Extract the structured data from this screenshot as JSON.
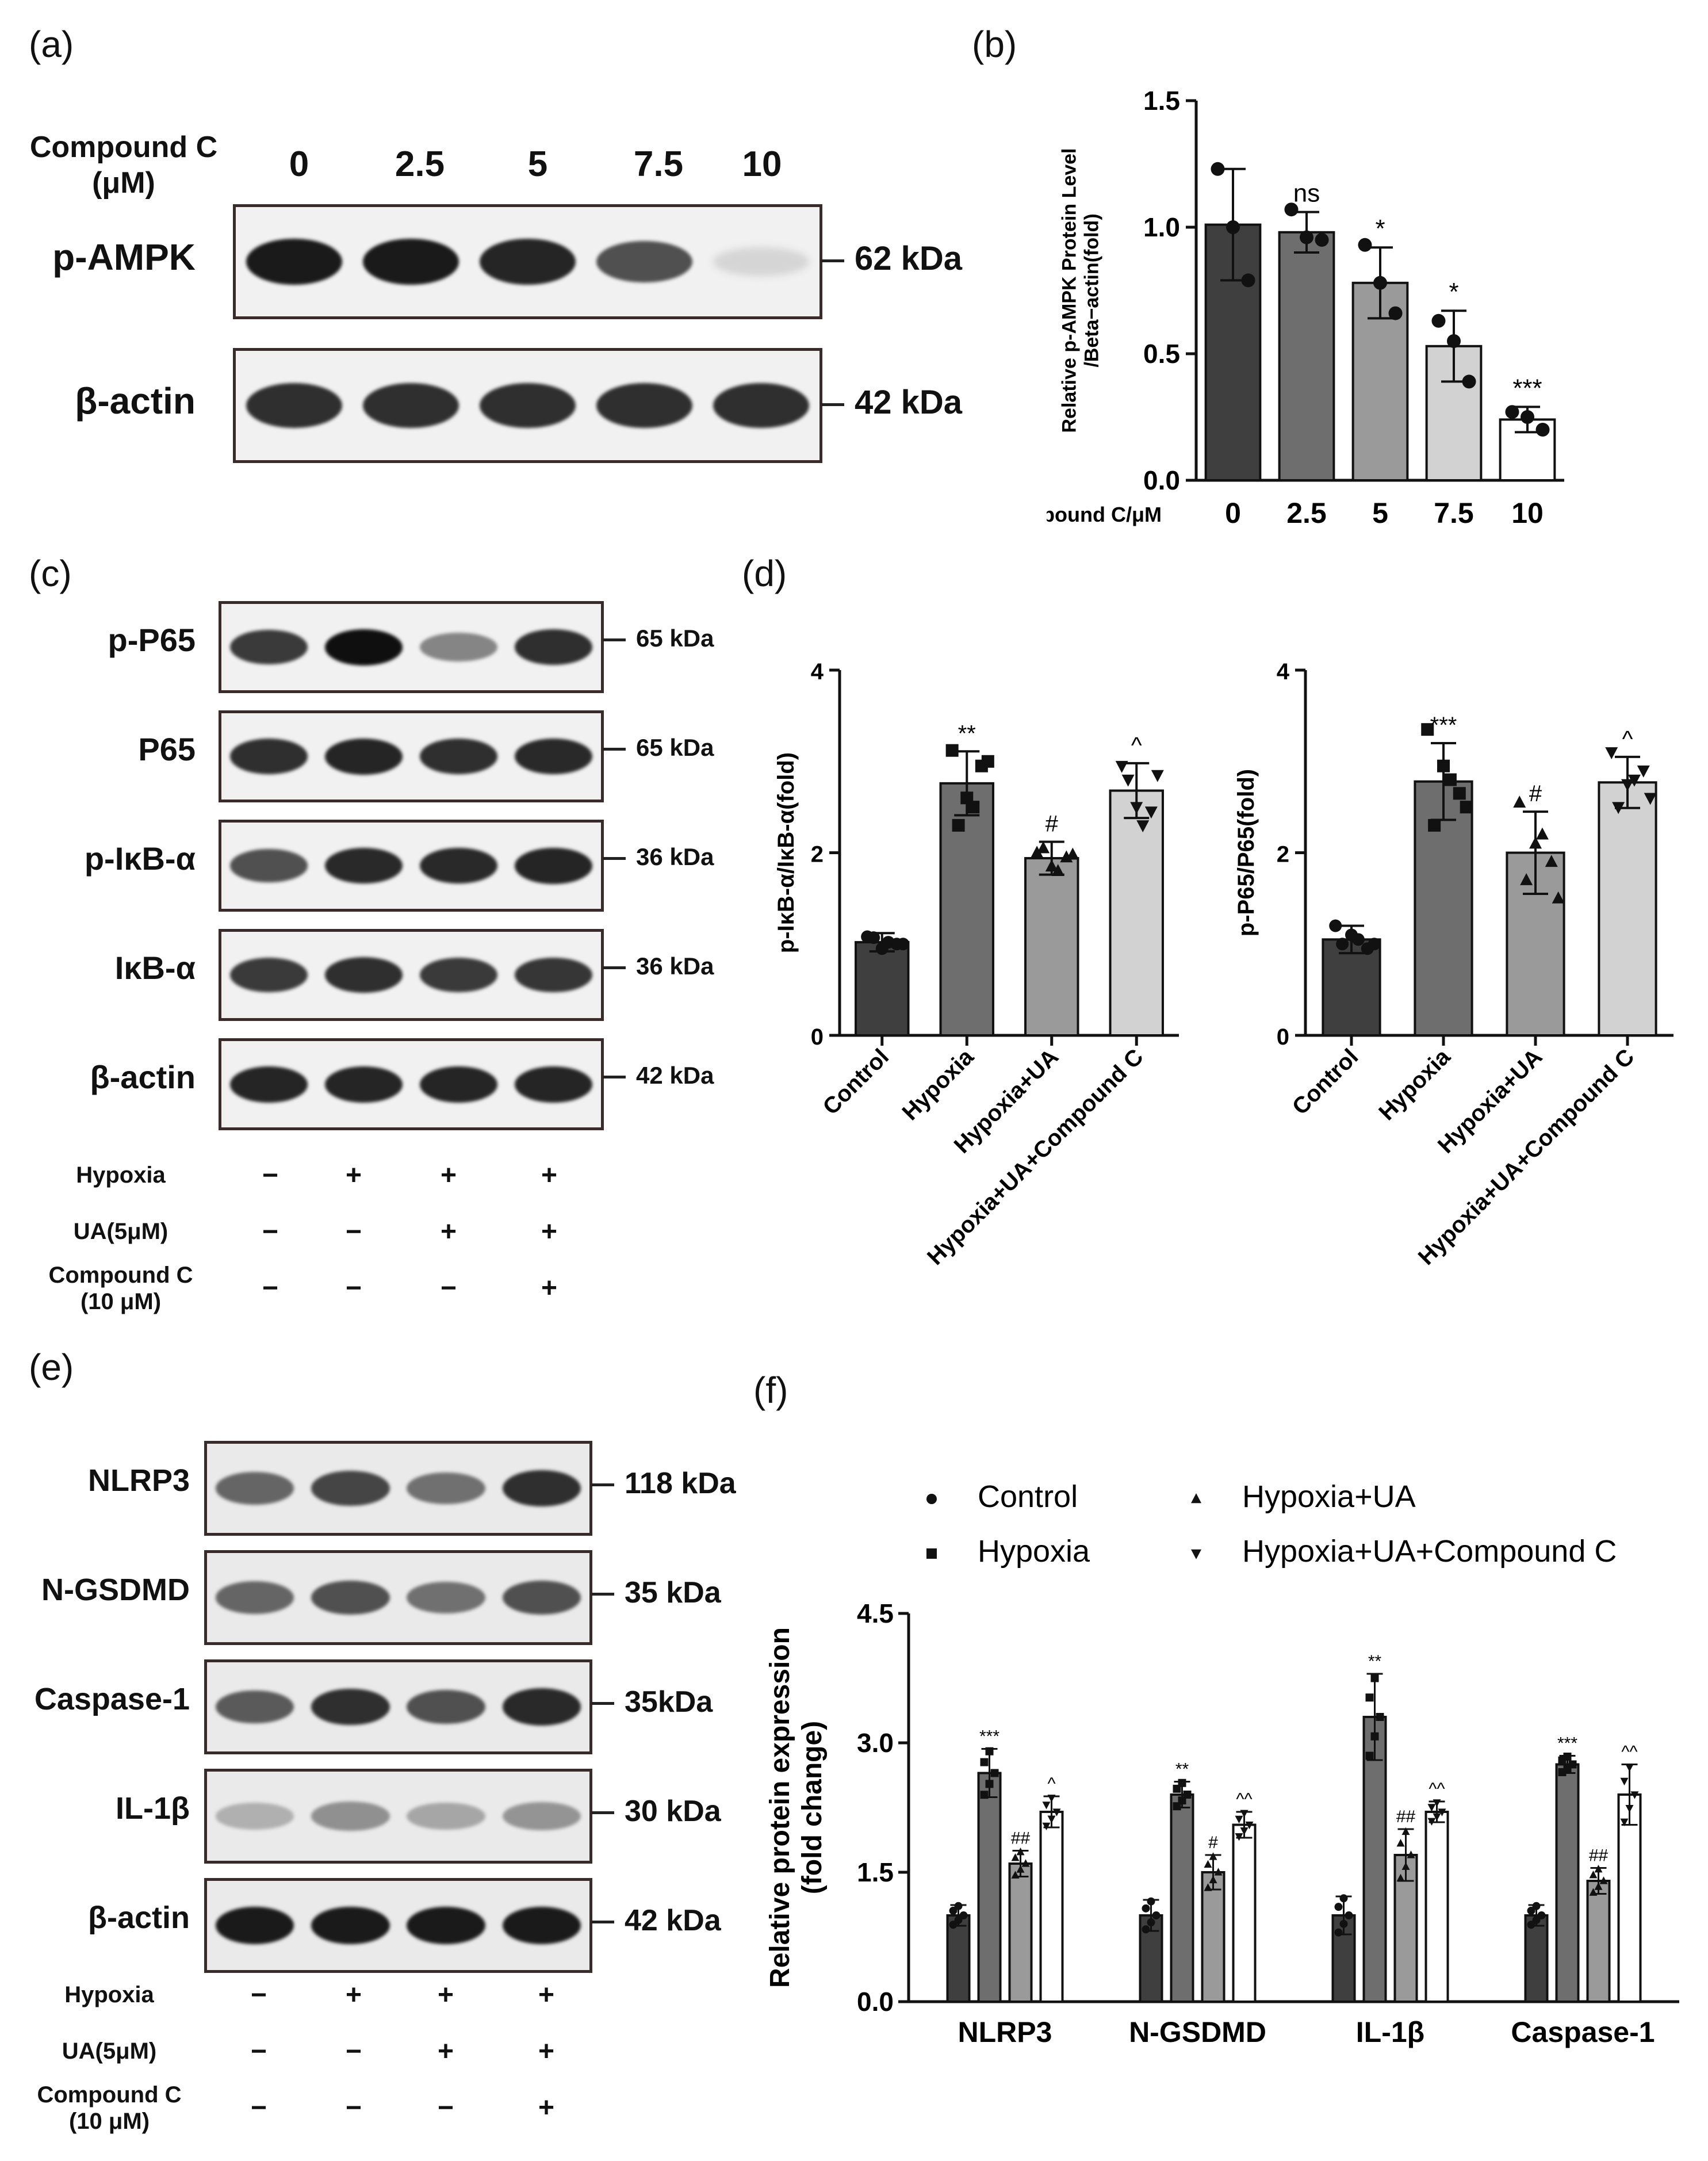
{
  "panel_labels": {
    "a": "(a)",
    "b": "(b)",
    "c": "(c)",
    "d": "(d)",
    "e": "(e)",
    "f": "(f)"
  },
  "panel_a": {
    "row_label_line1": "Compound C",
    "row_label_line2": "(μM)",
    "doses": [
      "0",
      "2.5",
      "5",
      "7.5",
      "10"
    ],
    "blots": [
      {
        "label": "p-AMPK",
        "kda": "62 kDa",
        "intensity": [
          0.95,
          0.95,
          0.9,
          0.7,
          0.08
        ]
      },
      {
        "label": "β-actin",
        "kda": "42 kDa",
        "intensity": [
          0.85,
          0.85,
          0.85,
          0.85,
          0.85
        ]
      }
    ]
  },
  "panel_c": {
    "blots": [
      {
        "label": "p-P65",
        "kda": "65 kDa",
        "intensity": [
          0.8,
          1.0,
          0.45,
          0.85
        ]
      },
      {
        "label": "P65",
        "kda": "65 kDa",
        "intensity": [
          0.85,
          0.9,
          0.85,
          0.88
        ]
      },
      {
        "label": "p-IκB-α",
        "kda": "36 kDa",
        "intensity": [
          0.7,
          0.88,
          0.88,
          0.9
        ]
      },
      {
        "label": "IκB-α",
        "kda": "36 kDa",
        "intensity": [
          0.8,
          0.85,
          0.8,
          0.82
        ]
      },
      {
        "label": "β-actin",
        "kda": "42 kDa",
        "intensity": [
          0.9,
          0.9,
          0.9,
          0.9
        ]
      }
    ],
    "treatments": [
      {
        "label": "Hypoxia",
        "signs": [
          "−",
          "+",
          "+",
          "+"
        ]
      },
      {
        "label": "UA(5μM)",
        "signs": [
          "−",
          "−",
          "+",
          "+"
        ]
      },
      {
        "label": "Compound C\n(10 μM)",
        "signs": [
          "−",
          "−",
          "−",
          "+"
        ]
      }
    ]
  },
  "panel_e": {
    "blots": [
      {
        "label": "NLRP3",
        "kda": "118 kDa",
        "intensity": [
          0.6,
          0.75,
          0.55,
          0.85
        ]
      },
      {
        "label": "N-GSDMD",
        "kda": "35 kDa",
        "intensity": [
          0.6,
          0.7,
          0.55,
          0.7
        ]
      },
      {
        "label": "Caspase-1",
        "kda": "35kDa",
        "intensity": [
          0.65,
          0.85,
          0.7,
          0.88
        ]
      },
      {
        "label": "IL-1β",
        "kda": "30 kDa",
        "intensity": [
          0.25,
          0.4,
          0.3,
          0.38
        ]
      },
      {
        "label": "β-actin",
        "kda": "42 kDa",
        "intensity": [
          0.95,
          0.95,
          0.95,
          0.95
        ]
      }
    ],
    "treatments": [
      {
        "label": "Hypoxia",
        "signs": [
          "−",
          "+",
          "+",
          "+"
        ]
      },
      {
        "label": "UA(5μM)",
        "signs": [
          "−",
          "−",
          "+",
          "+"
        ]
      },
      {
        "label": "Compound C\n(10 μM)",
        "signs": [
          "−",
          "−",
          "−",
          "+"
        ]
      }
    ]
  },
  "colors": {
    "c0": "#3f3f3f",
    "c1": "#6e6e6e",
    "c2": "#9a9a9a",
    "c3": "#d2d2d2",
    "c4": "#ffffff"
  },
  "chart_data": [
    {
      "id": "b",
      "type": "bar",
      "title": "",
      "xlabel": "Compound C/μM",
      "ylabel": "Relative p-AMPK Protein Level\n/Beta−actin(fold)",
      "ylim": [
        0,
        1.5
      ],
      "yticks": [
        "0.0",
        "0.5",
        "1.0",
        "1.5"
      ],
      "categories": [
        "0",
        "2.5",
        "5",
        "7.5",
        "10"
      ],
      "values": [
        1.01,
        0.98,
        0.78,
        0.53,
        0.24
      ],
      "errors": [
        0.22,
        0.08,
        0.14,
        0.14,
        0.05
      ],
      "points": [
        [
          1.23,
          1.0,
          0.79
        ],
        [
          1.07,
          0.96,
          0.95
        ],
        [
          0.93,
          0.78,
          0.66
        ],
        [
          0.63,
          0.55,
          0.39
        ],
        [
          0.27,
          0.25,
          0.2
        ]
      ],
      "significance": [
        "",
        "ns",
        "*",
        "*",
        "***"
      ]
    },
    {
      "id": "d1",
      "type": "bar",
      "title": "",
      "xlabel": "",
      "ylabel": "p-IκB-α/IκB-α(fold)",
      "ylim": [
        0,
        4
      ],
      "yticks": [
        "0",
        "2",
        "4"
      ],
      "categories": [
        "Control",
        "Hypoxia",
        "Hypoxia+UA",
        "Hypoxia+UA+Compound C"
      ],
      "values": [
        1.02,
        2.76,
        1.94,
        2.68
      ],
      "errors": [
        0.1,
        0.35,
        0.18,
        0.3
      ],
      "points": [
        [
          1.08,
          0.95,
          1.0,
          1.07,
          1.02,
          1.0
        ],
        [
          3.12,
          2.6,
          2.95,
          2.3,
          2.5,
          3.0
        ],
        [
          2.0,
          1.85,
          1.95,
          2.05,
          1.8,
          1.98
        ],
        [
          2.95,
          2.5,
          2.45,
          2.8,
          2.3,
          2.85
        ]
      ],
      "markers": [
        "circle",
        "square",
        "triangle",
        "tri-down"
      ],
      "significance": [
        "",
        "**",
        "#",
        "^"
      ]
    },
    {
      "id": "d2",
      "type": "bar",
      "title": "",
      "xlabel": "",
      "ylabel": "p-P65/P65(fold)",
      "ylim": [
        0,
        4
      ],
      "yticks": [
        "0",
        "2",
        "4"
      ],
      "categories": [
        "Control",
        "Hypoxia",
        "Hypoxia+UA",
        "Hypoxia+UA+Compound C"
      ],
      "values": [
        1.05,
        2.78,
        2.0,
        2.77
      ],
      "errors": [
        0.15,
        0.42,
        0.45,
        0.28
      ],
      "points": [
        [
          1.2,
          1.1,
          0.95,
          1.0,
          1.05,
          1.0
        ],
        [
          3.35,
          2.95,
          2.65,
          2.3,
          2.8,
          2.5
        ],
        [
          2.55,
          2.1,
          1.9,
          1.7,
          2.2,
          1.5
        ],
        [
          3.1,
          2.75,
          2.9,
          2.5,
          2.8,
          2.6
        ]
      ],
      "markers": [
        "circle",
        "square",
        "triangle",
        "tri-down"
      ],
      "significance": [
        "",
        "***",
        "#",
        "^"
      ]
    },
    {
      "id": "f",
      "type": "bar",
      "title": "",
      "xlabel": "",
      "ylabel": "Relative protein expression\n(fold change)",
      "ylim": [
        0,
        4.5
      ],
      "yticks": [
        "0.0",
        "1.5",
        "3.0",
        "4.5"
      ],
      "categories": [
        "NLRP3",
        "N-GSDMD",
        "IL-1β",
        "Caspase-1"
      ],
      "series": [
        {
          "name": "Control",
          "values": [
            1.0,
            1.0,
            1.0,
            1.0
          ],
          "errors": [
            0.12,
            0.18,
            0.22,
            0.12
          ]
        },
        {
          "name": "Hypoxia",
          "values": [
            2.65,
            2.4,
            3.3,
            2.75
          ],
          "errors": [
            0.28,
            0.15,
            0.5,
            0.1
          ]
        },
        {
          "name": "Hypoxia+UA",
          "values": [
            1.6,
            1.5,
            1.7,
            1.4
          ],
          "errors": [
            0.15,
            0.2,
            0.3,
            0.15
          ]
        },
        {
          "name": "Hypoxia+UA+Compound C",
          "values": [
            2.2,
            2.05,
            2.2,
            2.4
          ],
          "errors": [
            0.18,
            0.15,
            0.12,
            0.35
          ]
        }
      ],
      "markers": [
        "circle",
        "square",
        "triangle",
        "tri-down"
      ],
      "significance": [
        [
          "",
          "***",
          "##",
          "^"
        ],
        [
          "",
          "**",
          "#",
          "^^"
        ],
        [
          "",
          "**",
          "##",
          "^^"
        ],
        [
          "",
          "***",
          "##",
          "^^"
        ]
      ]
    }
  ]
}
